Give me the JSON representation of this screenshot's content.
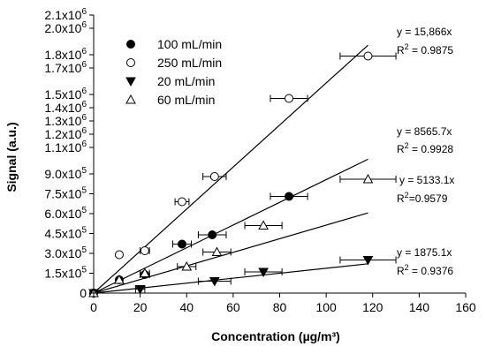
{
  "chart_data": {
    "type": "scatter",
    "xlabel": "Concentration (µg/m³)",
    "ylabel": "Signal (a.u.)",
    "xlim": [
      0,
      160
    ],
    "ylim": [
      0,
      2100000
    ],
    "x_ticks": [
      "0",
      "20",
      "40",
      "60",
      "80",
      "100",
      "120",
      "140",
      "160"
    ],
    "y_tick_values": [
      0,
      150000,
      300000,
      450000,
      600000,
      750000,
      900000,
      1100000,
      1200000,
      1300000,
      1400000,
      1500000,
      1700000,
      1800000,
      2000000,
      2100000
    ],
    "y_ticks": [
      {
        "m": "0",
        "e": ""
      },
      {
        "m": "1.5x10",
        "e": "5"
      },
      {
        "m": "3.0x10",
        "e": "5"
      },
      {
        "m": "4.5x10",
        "e": "5"
      },
      {
        "m": "6.0x10",
        "e": "5"
      },
      {
        "m": "7.5x10",
        "e": "5"
      },
      {
        "m": "9.0x10",
        "e": "5"
      },
      {
        "m": "1.1x10",
        "e": "6"
      },
      {
        "m": "1.2x10",
        "e": "6"
      },
      {
        "m": "1.3x10",
        "e": "6"
      },
      {
        "m": "1.4x10",
        "e": "6"
      },
      {
        "m": "1.5x10",
        "e": "6"
      },
      {
        "m": "1.7x10",
        "e": "6"
      },
      {
        "m": "1.8x10",
        "e": "6"
      },
      {
        "m": "2.0x10",
        "e": "6"
      },
      {
        "m": "2.1x10",
        "e": "6"
      }
    ],
    "grid": false,
    "legend_position": "top-left",
    "series": [
      {
        "name": "100 mL/min",
        "marker": "filled-circle",
        "slope": 8565.7,
        "fit_x_max": 118,
        "equation": "y = 8565.7x",
        "r2_prefix": "R",
        "r2_exp": "2",
        "r2_value": " = 0.9928",
        "points": [
          {
            "x": 0,
            "y": 0,
            "xerr": 0
          },
          {
            "x": 11,
            "y": 100000,
            "xerr": 0
          },
          {
            "x": 22,
            "y": 140000,
            "xerr": 2
          },
          {
            "x": 38,
            "y": 370000,
            "xerr": 4
          },
          {
            "x": 51,
            "y": 440000,
            "xerr": 6
          },
          {
            "x": 84,
            "y": 730000,
            "xerr": 8
          }
        ]
      },
      {
        "name": "250 mL/min",
        "marker": "open-circle",
        "slope": 15866,
        "fit_x_max": 118,
        "equation": "y = 15,866x",
        "r2_prefix": "R",
        "r2_exp": "2",
        "r2_value": " = 0.9875",
        "points": [
          {
            "x": 0,
            "y": 0,
            "xerr": 0
          },
          {
            "x": 11,
            "y": 290000,
            "xerr": 0
          },
          {
            "x": 22,
            "y": 320000,
            "xerr": 2
          },
          {
            "x": 38,
            "y": 690000,
            "xerr": 3
          },
          {
            "x": 52,
            "y": 880000,
            "xerr": 5
          },
          {
            "x": 84,
            "y": 1470000,
            "xerr": 8
          },
          {
            "x": 118,
            "y": 1790000,
            "xerr": 12
          }
        ]
      },
      {
        "name": "20 mL/min",
        "marker": "filled-triangle-down",
        "slope": 1875.1,
        "fit_x_max": 118,
        "equation": "y = 1875.1x",
        "r2_prefix": "R",
        "r2_exp": "2",
        "r2_value": " = 0.9376",
        "points": [
          {
            "x": 0,
            "y": 0,
            "xerr": 0
          },
          {
            "x": 20,
            "y": 30000,
            "xerr": 2
          },
          {
            "x": 52,
            "y": 90000,
            "xerr": 7
          },
          {
            "x": 73,
            "y": 160000,
            "xerr": 8
          },
          {
            "x": 118,
            "y": 250000,
            "xerr": 12
          }
        ]
      },
      {
        "name": "60 mL/min",
        "marker": "open-triangle-up",
        "slope": 5133.1,
        "fit_x_max": 118,
        "equation": "y = 5133.1x",
        "r2_prefix": "R",
        "r2_exp": "2",
        "r2_value": "=0.9579",
        "points": [
          {
            "x": 0,
            "y": 0,
            "xerr": 0
          },
          {
            "x": 11,
            "y": 100000,
            "xerr": 0
          },
          {
            "x": 22,
            "y": 150000,
            "xerr": 2
          },
          {
            "x": 40,
            "y": 200000,
            "xerr": 4
          },
          {
            "x": 53,
            "y": 310000,
            "xerr": 6
          },
          {
            "x": 73,
            "y": 510000,
            "xerr": 8
          },
          {
            "x": 118,
            "y": 860000,
            "xerr": 12
          }
        ]
      }
    ]
  }
}
